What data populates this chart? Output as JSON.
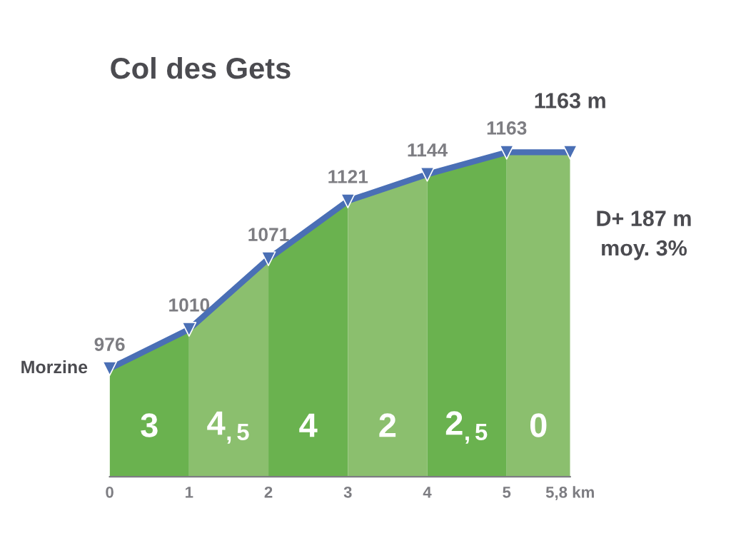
{
  "chart_data": {
    "type": "line",
    "title": "Col des Gets",
    "x": [
      0,
      1,
      2,
      3,
      4,
      5,
      5.8
    ],
    "series": [
      {
        "color": "#4a6fb5",
        "values": [
          976,
          1010,
          1071,
          1121,
          1144,
          1163,
          1163
        ],
        "value_labels": [
          "976",
          "1010",
          "1071",
          "1121",
          "1144",
          "1163",
          null
        ]
      }
    ],
    "xlim": [
      0,
      5.8
    ],
    "xticks": [
      0,
      1,
      2,
      3,
      4,
      5,
      {
        "value": 5.8,
        "label": "5,8 km"
      }
    ],
    "tick_labels": "x",
    "marker": "triangle",
    "line_style": "solid",
    "bands": [
      {
        "axis": "x",
        "from": 0,
        "to": 1,
        "label": "3",
        "color": "#6ab24f"
      },
      {
        "axis": "x",
        "from": 1,
        "to": 2,
        "label": "4$_{,5}$",
        "color": "#8bbf6e"
      },
      {
        "axis": "x",
        "from": 2,
        "to": 3,
        "label": "4",
        "color": "#6ab24f"
      },
      {
        "axis": "x",
        "from": 3,
        "to": 4,
        "label": "2",
        "color": "#8bbf6e"
      },
      {
        "axis": "x",
        "from": 4,
        "to": 5,
        "label": "2$_{,5}$",
        "color": "#6ab24f"
      },
      {
        "axis": "x",
        "from": 5,
        "to": 5.8,
        "label": "0",
        "color": "#8bbf6e"
      }
    ],
    "annotations": [
      {
        "text": "Morzine",
        "x": 0,
        "y": 976
      },
      {
        "text": "1163 m",
        "x": 5.8,
        "y": 1163
      },
      "D+ 187 m",
      "moy. 3%"
    ]
  }
}
